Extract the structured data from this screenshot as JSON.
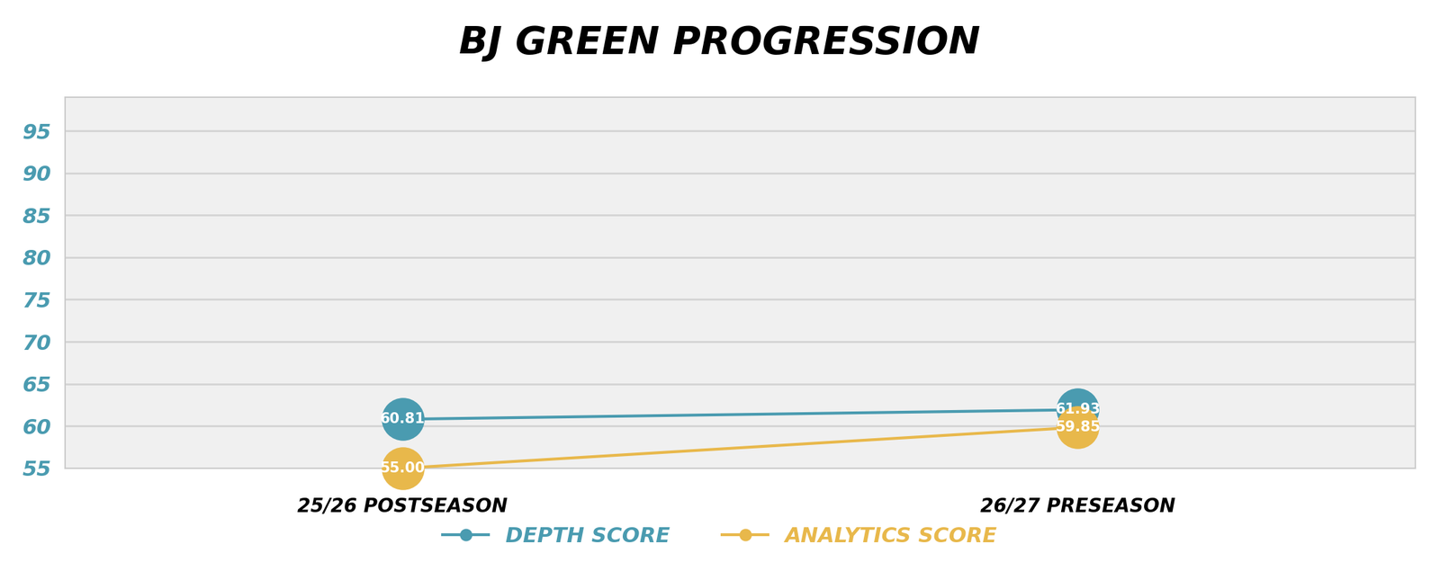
{
  "chart_data": {
    "type": "line",
    "title": "BJ GREEN PROGRESSION",
    "categories": [
      "25/26 POSTSEASON",
      "26/27 PRESEASON"
    ],
    "series": [
      {
        "name": "DEPTH SCORE",
        "color": "#4a9bb0",
        "marker": "circle",
        "values": [
          60.81,
          61.93
        ],
        "value_labels": [
          "60.81",
          "61.93"
        ]
      },
      {
        "name": "ANALYTICS SCORE",
        "color": "#e8b84b",
        "marker": "circle",
        "values": [
          55.0,
          59.85
        ],
        "value_labels": [
          "55.00",
          "59.85"
        ]
      }
    ],
    "ylim": [
      55,
      99
    ],
    "yticks": [
      55,
      60,
      65,
      70,
      75,
      80,
      85,
      90,
      95
    ],
    "grid": true,
    "legend": "lower center",
    "data_labels": true
  }
}
